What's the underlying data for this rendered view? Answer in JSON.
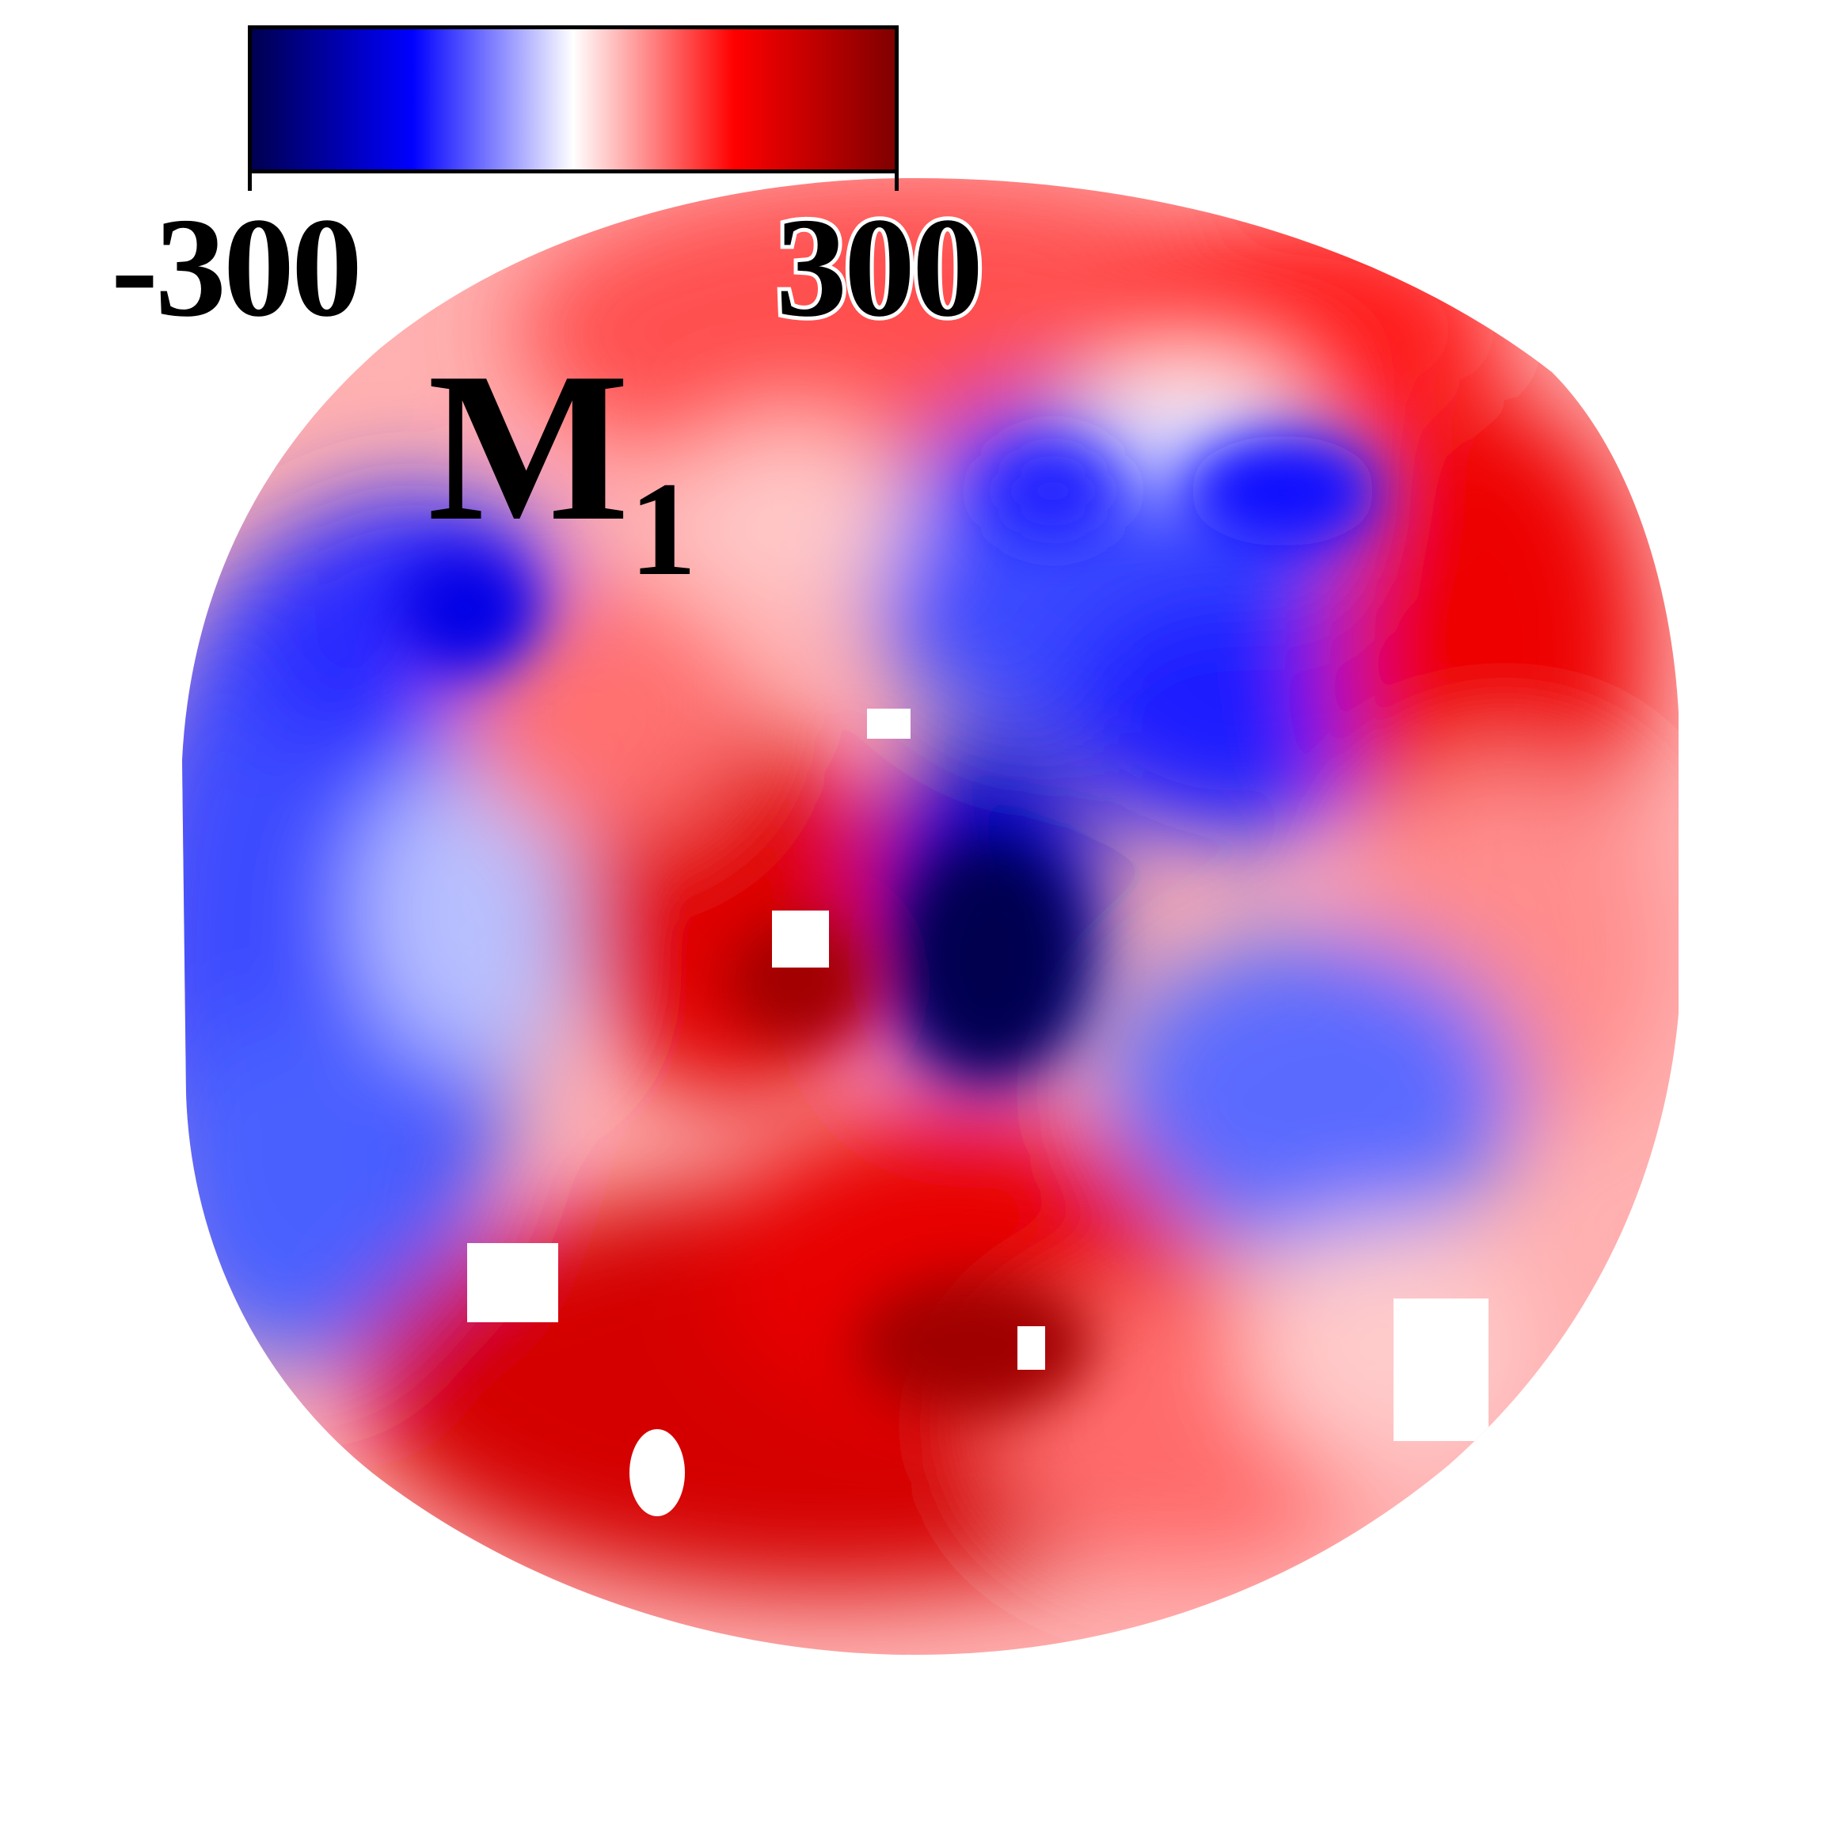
{
  "colorbar": {
    "min_label": "-300",
    "max_label": "300",
    "min": -300,
    "max": 300,
    "colors": [
      "#000050",
      "#0000ff",
      "#ffffff",
      "#ff0000",
      "#800000"
    ]
  },
  "panel": {
    "label_main": "M",
    "label_sub": "1"
  },
  "map": {
    "description_type": "circular diverging colormap field",
    "masked_color": "#ffffff"
  }
}
